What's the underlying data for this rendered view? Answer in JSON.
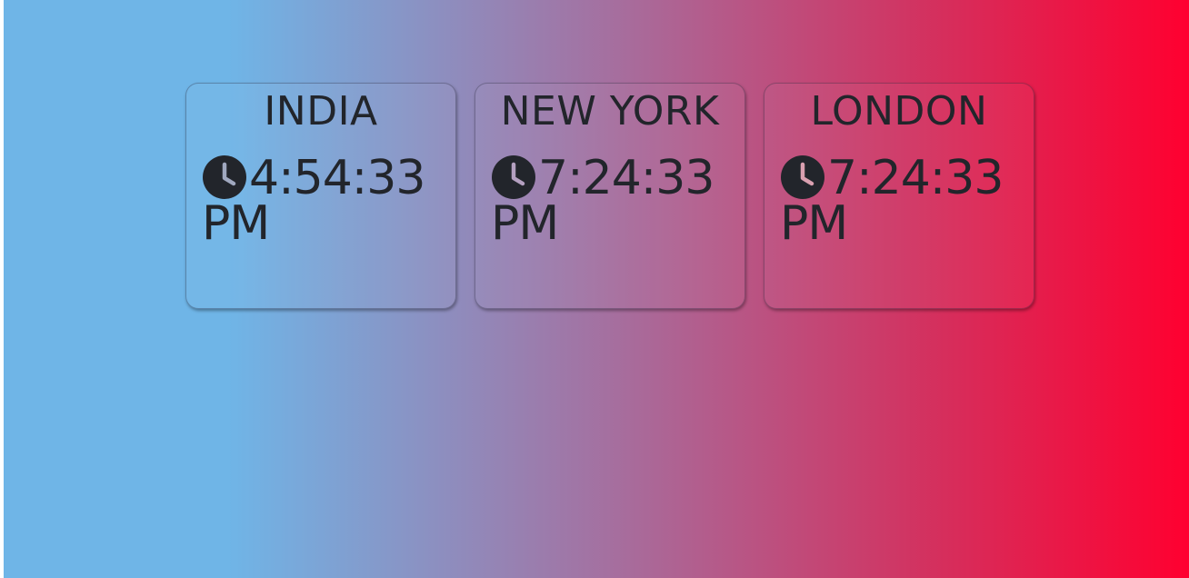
{
  "clocks": [
    {
      "city": "INDIA",
      "time": "4:54:33 PM",
      "icon": "clock-icon"
    },
    {
      "city": "NEW YORK",
      "time": "7:24:33 PM",
      "icon": "clock-icon"
    },
    {
      "city": "LONDON",
      "time": "7:24:33 PM",
      "icon": "clock-icon"
    }
  ],
  "colors": {
    "gradient_start": "#6fb5e7",
    "gradient_mid": "#a372a2",
    "gradient_end": "#ff0030",
    "text": "#22252b"
  }
}
